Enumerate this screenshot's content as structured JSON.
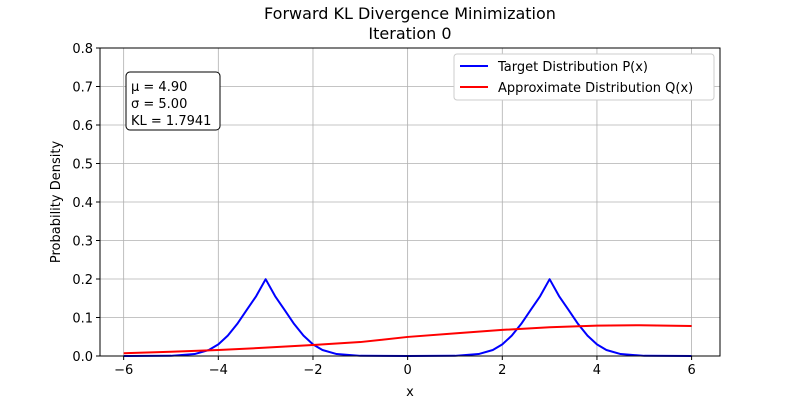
{
  "chart_data": {
    "type": "line",
    "title": "Forward KL Divergence Minimization",
    "subtitle": "Iteration 0",
    "xlabel": "x",
    "ylabel": "Probability Density",
    "xlim": [
      -6.5,
      6.6
    ],
    "ylim": [
      0,
      0.8
    ],
    "xticks": [
      -6,
      -4,
      -2,
      0,
      2,
      4,
      6
    ],
    "xtick_labels": [
      "−6",
      "−4",
      "−2",
      "0",
      "2",
      "4",
      "6"
    ],
    "yticks": [
      0.0,
      0.1,
      0.2,
      0.3,
      0.4,
      0.5,
      0.6,
      0.7,
      0.8
    ],
    "ytick_labels": [
      "0.0",
      "0.1",
      "0.2",
      "0.3",
      "0.4",
      "0.5",
      "0.6",
      "0.7",
      "0.8"
    ],
    "grid": true,
    "legend_position": "top-right",
    "series": [
      {
        "name": "Target Distribution P(x)",
        "color": "#0000ff",
        "x": [
          -6.0,
          -5.0,
          -4.5,
          -4.2,
          -4.0,
          -3.8,
          -3.6,
          -3.4,
          -3.2,
          -3.0,
          -2.8,
          -2.6,
          -2.4,
          -2.2,
          -2.0,
          -1.8,
          -1.5,
          -1.0,
          0.0,
          1.0,
          1.5,
          1.8,
          2.0,
          2.2,
          2.4,
          2.6,
          2.8,
          3.0,
          3.2,
          3.4,
          3.6,
          3.8,
          4.0,
          4.2,
          4.5,
          5.0,
          6.0
        ],
        "y": [
          0.0,
          0.0005,
          0.0051,
          0.0156,
          0.0303,
          0.0528,
          0.0833,
          0.1195,
          0.1554,
          0.1995,
          0.1554,
          0.1195,
          0.0833,
          0.0528,
          0.0303,
          0.0156,
          0.0051,
          0.0005,
          0.0,
          0.0005,
          0.0051,
          0.0156,
          0.0303,
          0.0528,
          0.0833,
          0.1195,
          0.1554,
          0.1995,
          0.1554,
          0.1195,
          0.0833,
          0.0528,
          0.0303,
          0.0156,
          0.0051,
          0.0005,
          0.0
        ]
      },
      {
        "name": "Approximate Distribution Q(x)",
        "color": "#ff0000",
        "x": [
          -6.0,
          -5.0,
          -4.0,
          -3.0,
          -2.0,
          -1.0,
          0.0,
          1.0,
          2.0,
          3.0,
          4.0,
          4.9,
          6.0
        ],
        "y": [
          0.0072,
          0.0109,
          0.0156,
          0.0216,
          0.0286,
          0.0362,
          0.0495,
          0.0589,
          0.0678,
          0.0748,
          0.079,
          0.0798,
          0.078
        ]
      }
    ],
    "annotation": {
      "lines": [
        "μ = 4.90",
        "σ = 5.00",
        "KL = 1.7941"
      ]
    }
  }
}
